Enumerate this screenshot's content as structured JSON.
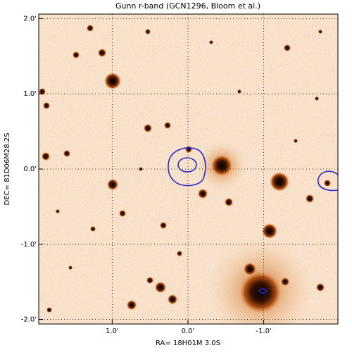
{
  "chart_data": {
    "type": "image",
    "title": "Gunn r-band (GCN1296, Bloom et al.)",
    "x_label": "RA= 18H01M 3.0S",
    "y_label": "DEC=  81D06M28.2S",
    "xlim": [
      1.97,
      -1.98
    ],
    "ylim": [
      -2.06,
      2.06
    ],
    "xticks": [
      {
        "value": 1,
        "label": "1.0'"
      },
      {
        "value": 0,
        "label": "0.0'"
      },
      {
        "value": -1,
        "label": "-1.0'"
      }
    ],
    "yticks": [
      {
        "value": 2,
        "label": "2.0'"
      },
      {
        "value": 1,
        "label": "1.0'"
      },
      {
        "value": 0,
        "label": "0.0'"
      },
      {
        "value": -1,
        "label": "-1.0'"
      },
      {
        "value": -2,
        "label": "-2.0'"
      }
    ],
    "grid": true
  }
}
